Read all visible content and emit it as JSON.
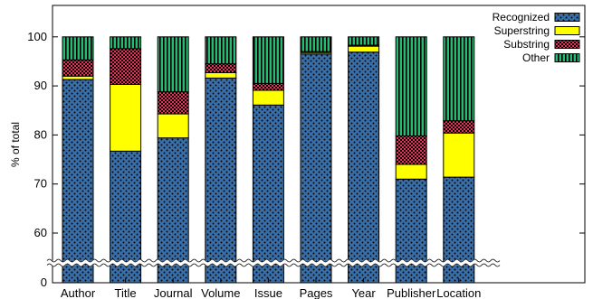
{
  "chart_data": {
    "type": "bar",
    "stacked": true,
    "ylabel": "% of total",
    "xlabel": "",
    "title": "",
    "ylim": [
      0,
      100
    ],
    "axis_break": "between 0 and 55",
    "yticks": [
      0,
      60,
      70,
      80,
      90,
      100
    ],
    "categories": [
      "Author",
      "Title",
      "Journal",
      "Volume",
      "Issue",
      "Pages",
      "Year",
      "Publisher",
      "Location"
    ],
    "series": [
      {
        "name": "Recognized",
        "pattern": "dots",
        "color": "#3a6ea5",
        "values": [
          91.3,
          76.7,
          79.4,
          91.6,
          86.1,
          96.5,
          96.9,
          71.0,
          71.4
        ]
      },
      {
        "name": "Superstring",
        "pattern": "solid",
        "color": "#ffff00",
        "values": [
          0.7,
          13.6,
          4.9,
          1.1,
          3.0,
          0.3,
          1.2,
          3.0,
          9.0
        ]
      },
      {
        "name": "Substring",
        "pattern": "checker",
        "color": "#e8305a",
        "values": [
          3.3,
          7.3,
          4.5,
          1.8,
          1.4,
          0.2,
          0.2,
          5.8,
          2.5
        ]
      },
      {
        "name": "Other",
        "pattern": "vstripe",
        "color": "#20c070",
        "values": [
          4.7,
          2.4,
          11.2,
          5.5,
          9.5,
          3.0,
          1.7,
          20.2,
          17.1
        ]
      }
    ],
    "legend_position": "top-right",
    "grid": false
  }
}
